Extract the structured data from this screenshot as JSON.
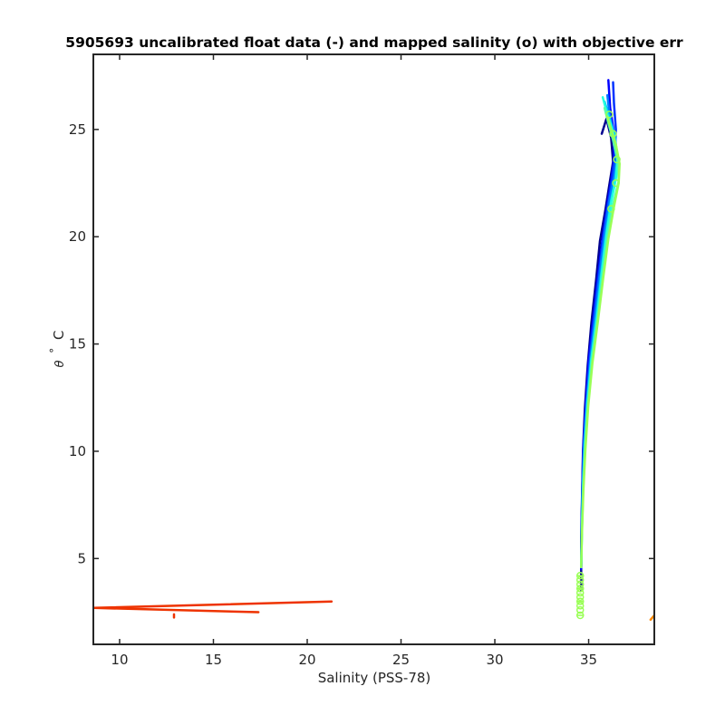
{
  "chart_data": {
    "type": "line",
    "title": "5905693 uncalibrated float data (-) and mapped salinity (o) with objective err",
    "xlabel": "Salinity (PSS-78)",
    "ylabel_symbol": "θ",
    "ylabel_degree": "°",
    "ylabel_unit": "C",
    "xlim": [
      8.6,
      38.5
    ],
    "ylim": [
      1.0,
      28.5
    ],
    "x_ticks": [
      10,
      15,
      20,
      25,
      30,
      35
    ],
    "y_ticks": [
      5,
      10,
      15,
      20,
      25
    ],
    "grid": false,
    "colors": {
      "axes": "#262626",
      "anomaly": "#ee3300",
      "anomaly_right": "#ff8800",
      "mapped": "#99ff55"
    },
    "series": [
      {
        "color": "#00008f",
        "points": [
          [
            35.7,
            24.8
          ],
          [
            35.95,
            25.5
          ],
          [
            36.2,
            24.6
          ],
          [
            36.3,
            23.5
          ],
          [
            36.1,
            22.4
          ],
          [
            35.9,
            21.3
          ],
          [
            35.6,
            19.8
          ],
          [
            35.4,
            18.0
          ],
          [
            35.15,
            16.0
          ],
          [
            34.95,
            14.0
          ],
          [
            34.8,
            12.0
          ],
          [
            34.7,
            10.0
          ],
          [
            34.65,
            8.0
          ],
          [
            34.6,
            6.0
          ],
          [
            34.6,
            4.5
          ],
          [
            34.6,
            3.5
          ]
        ]
      },
      {
        "color": "#0000ff",
        "points": [
          [
            36.05,
            27.3
          ],
          [
            36.15,
            26.0
          ],
          [
            36.35,
            24.8
          ],
          [
            36.35,
            23.6
          ],
          [
            36.2,
            22.6
          ],
          [
            36.0,
            21.5
          ],
          [
            35.75,
            20.0
          ],
          [
            35.5,
            18.2
          ],
          [
            35.25,
            16.2
          ],
          [
            35.0,
            14.2
          ],
          [
            34.85,
            12.2
          ],
          [
            34.72,
            10.2
          ],
          [
            34.66,
            8.2
          ],
          [
            34.62,
            6.2
          ],
          [
            34.6,
            4.5
          ]
        ]
      },
      {
        "color": "#0033ff",
        "points": [
          [
            36.3,
            27.2
          ],
          [
            36.35,
            26.2
          ],
          [
            36.45,
            25.0
          ],
          [
            36.4,
            23.8
          ],
          [
            36.25,
            22.7
          ],
          [
            36.05,
            21.6
          ],
          [
            35.8,
            20.1
          ],
          [
            35.55,
            18.3
          ],
          [
            35.3,
            16.3
          ],
          [
            35.05,
            14.3
          ],
          [
            34.88,
            12.3
          ],
          [
            34.74,
            10.3
          ],
          [
            34.67,
            8.3
          ],
          [
            34.62,
            6.3
          ],
          [
            34.6,
            4.6
          ]
        ]
      },
      {
        "color": "#0077ff",
        "points": [
          [
            36.0,
            26.6
          ],
          [
            36.1,
            25.8
          ],
          [
            36.3,
            24.9
          ],
          [
            36.5,
            23.9
          ],
          [
            36.35,
            22.8
          ],
          [
            36.1,
            21.7
          ],
          [
            35.85,
            20.2
          ],
          [
            35.6,
            18.4
          ],
          [
            35.35,
            16.4
          ],
          [
            35.1,
            14.4
          ],
          [
            34.9,
            12.4
          ],
          [
            34.76,
            10.4
          ],
          [
            34.68,
            8.4
          ],
          [
            34.63,
            6.4
          ],
          [
            34.6,
            4.6
          ]
        ]
      },
      {
        "color": "#00bbff",
        "points": [
          [
            35.85,
            26.3
          ],
          [
            36.1,
            25.6
          ],
          [
            36.4,
            24.7
          ],
          [
            36.55,
            23.6
          ],
          [
            36.4,
            22.6
          ],
          [
            36.15,
            21.5
          ],
          [
            35.9,
            20.0
          ],
          [
            35.65,
            18.2
          ],
          [
            35.4,
            16.2
          ],
          [
            35.12,
            14.2
          ],
          [
            34.92,
            12.2
          ],
          [
            34.78,
            10.2
          ],
          [
            34.69,
            8.2
          ],
          [
            34.63,
            6.2
          ],
          [
            34.6,
            4.6
          ]
        ]
      },
      {
        "color": "#22ffdd",
        "points": [
          [
            35.75,
            26.5
          ],
          [
            36.0,
            25.7
          ],
          [
            36.3,
            24.9
          ],
          [
            36.55,
            23.8
          ],
          [
            36.45,
            22.7
          ],
          [
            36.2,
            21.6
          ],
          [
            35.95,
            20.1
          ],
          [
            35.7,
            18.3
          ],
          [
            35.45,
            16.3
          ],
          [
            35.15,
            14.3
          ],
          [
            34.95,
            12.3
          ],
          [
            34.8,
            10.3
          ],
          [
            34.7,
            8.3
          ],
          [
            34.64,
            6.3
          ],
          [
            34.6,
            4.6
          ]
        ]
      },
      {
        "color": "#55ffaa",
        "points": [
          [
            35.85,
            26.0
          ],
          [
            36.05,
            25.3
          ],
          [
            36.3,
            24.5
          ],
          [
            36.55,
            23.5
          ],
          [
            36.6,
            22.6
          ],
          [
            36.3,
            21.5
          ],
          [
            36.0,
            20.0
          ],
          [
            35.75,
            18.2
          ],
          [
            35.48,
            16.2
          ],
          [
            35.18,
            14.2
          ],
          [
            34.97,
            12.2
          ],
          [
            34.82,
            10.2
          ],
          [
            34.71,
            8.2
          ],
          [
            34.64,
            6.2
          ],
          [
            34.6,
            4.6
          ]
        ]
      },
      {
        "color": "#99ff55",
        "points": [
          [
            36.0,
            25.6
          ],
          [
            36.2,
            25.0
          ],
          [
            36.45,
            24.3
          ],
          [
            36.65,
            23.4
          ],
          [
            36.6,
            22.5
          ],
          [
            36.35,
            21.4
          ],
          [
            36.05,
            19.9
          ],
          [
            35.78,
            18.1
          ],
          [
            35.5,
            16.1
          ],
          [
            35.2,
            14.1
          ],
          [
            34.98,
            12.1
          ],
          [
            34.83,
            10.1
          ],
          [
            34.72,
            8.1
          ],
          [
            34.64,
            6.1
          ],
          [
            34.6,
            4.6
          ]
        ]
      },
      {
        "color": "#ee3300",
        "points": [
          [
            8.6,
            2.7
          ],
          [
            21.3,
            3.0
          ]
        ]
      },
      {
        "color": "#ee3300",
        "points": [
          [
            8.6,
            2.7
          ],
          [
            17.4,
            2.5
          ]
        ]
      },
      {
        "color": "#ee3300",
        "points": [
          [
            12.9,
            2.4
          ],
          [
            12.9,
            2.25
          ]
        ]
      },
      {
        "color": "#ff8800",
        "points": [
          [
            38.3,
            2.15
          ],
          [
            38.5,
            2.35
          ]
        ]
      }
    ],
    "mapped_points": [
      [
        36.1,
        25.7
      ],
      [
        36.3,
        24.8
      ],
      [
        36.5,
        23.6
      ],
      [
        36.45,
        22.5
      ],
      [
        36.2,
        21.3
      ],
      [
        34.55,
        4.2
      ],
      [
        34.55,
        4.0
      ],
      [
        34.55,
        3.8
      ],
      [
        34.55,
        3.6
      ],
      [
        34.55,
        3.4
      ],
      [
        34.55,
        3.2
      ],
      [
        34.55,
        3.0
      ],
      [
        34.55,
        2.8
      ],
      [
        34.55,
        2.6
      ],
      [
        34.55,
        2.35
      ]
    ],
    "mapped_errors": [
      [
        34.55,
        4.2,
        0.2
      ],
      [
        34.55,
        3.6,
        0.2
      ],
      [
        34.55,
        3.0,
        0.2
      ],
      [
        34.55,
        2.35,
        0.2
      ]
    ]
  }
}
